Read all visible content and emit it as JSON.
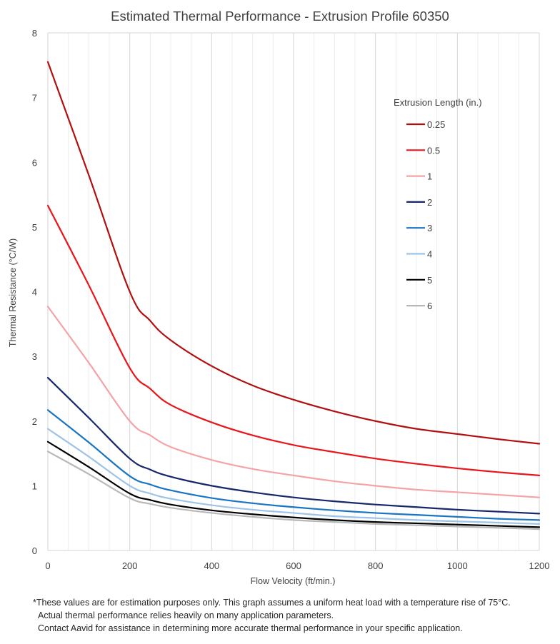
{
  "chart_data": {
    "type": "line",
    "title": "Estimated Thermal Performance - Extrusion Profile 60350",
    "xlabel": "Flow Velocity (ft/min.)",
    "ylabel": "Thermal Resistance (°C/W)",
    "xlim": [
      0,
      1200
    ],
    "ylim": [
      0,
      8
    ],
    "xticks": [
      0,
      200,
      400,
      600,
      800,
      1000,
      1200
    ],
    "yticks": [
      0,
      1,
      2,
      3,
      4,
      5,
      6,
      7,
      8
    ],
    "grid": true,
    "legend_title": "Extrusion Length (in.)",
    "legend_position": "upper-right",
    "x": [
      0,
      100,
      200,
      250,
      300,
      400,
      500,
      600,
      700,
      800,
      900,
      1000,
      1100,
      1200
    ],
    "series": [
      {
        "name": "0.25",
        "color": "#b21010",
        "values": [
          7.55,
          5.8,
          4.0,
          3.55,
          3.25,
          2.85,
          2.55,
          2.33,
          2.15,
          2.0,
          1.88,
          1.8,
          1.72,
          1.65
        ]
      },
      {
        "name": "0.5",
        "color": "#e8161b",
        "values": [
          5.33,
          4.1,
          2.82,
          2.5,
          2.25,
          1.98,
          1.78,
          1.63,
          1.52,
          1.42,
          1.34,
          1.27,
          1.21,
          1.16
        ]
      },
      {
        "name": "1",
        "color": "#f4a3a6",
        "values": [
          3.77,
          2.9,
          2.0,
          1.78,
          1.6,
          1.4,
          1.26,
          1.16,
          1.07,
          1.0,
          0.94,
          0.9,
          0.86,
          0.82
        ]
      },
      {
        "name": "2",
        "color": "#16286b",
        "values": [
          2.67,
          2.05,
          1.42,
          1.25,
          1.14,
          1.0,
          0.9,
          0.82,
          0.76,
          0.71,
          0.67,
          0.63,
          0.6,
          0.57
        ]
      },
      {
        "name": "3",
        "color": "#1a74c4",
        "values": [
          2.17,
          1.67,
          1.15,
          1.02,
          0.93,
          0.81,
          0.73,
          0.67,
          0.62,
          0.58,
          0.55,
          0.52,
          0.49,
          0.47
        ]
      },
      {
        "name": "4",
        "color": "#9dc3e6",
        "values": [
          1.88,
          1.45,
          1.0,
          0.88,
          0.8,
          0.7,
          0.63,
          0.58,
          0.53,
          0.5,
          0.47,
          0.45,
          0.43,
          0.41
        ]
      },
      {
        "name": "5",
        "color": "#000000",
        "values": [
          1.68,
          1.29,
          0.88,
          0.78,
          0.71,
          0.62,
          0.56,
          0.51,
          0.47,
          0.44,
          0.42,
          0.4,
          0.38,
          0.36
        ]
      },
      {
        "name": "6",
        "color": "#b8b8b8",
        "values": [
          1.53,
          1.18,
          0.81,
          0.72,
          0.66,
          0.58,
          0.52,
          0.47,
          0.44,
          0.41,
          0.39,
          0.37,
          0.35,
          0.33
        ]
      }
    ]
  },
  "footnote": {
    "line1": "*These values are for estimation purposes only. This graph assumes a uniform heat load with a temperature rise of 75°C.",
    "line2": "Actual thermal performance relies heavily on many application parameters.",
    "line3": "Contact Aavid for assistance in determining more accurate thermal performance in your specific application."
  }
}
